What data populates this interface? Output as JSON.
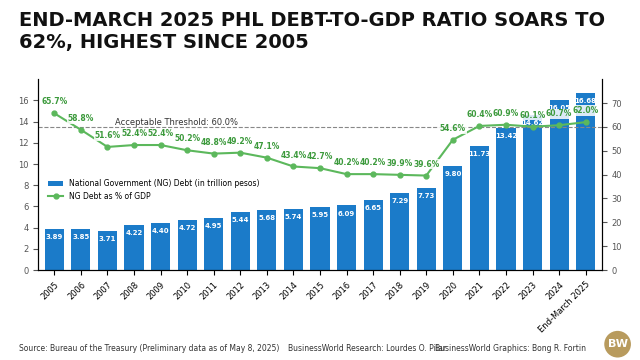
{
  "chart_data": {
    "type": "bar",
    "title": "END-MARCH 2025 PHL DEBT-TO-GDP RATIO SOARS TO 62%, HIGHEST SINCE 2005",
    "categories": [
      "2005",
      "2006",
      "2007",
      "2008",
      "2009",
      "2010",
      "2011",
      "2012",
      "2013",
      "2014",
      "2015",
      "2016",
      "2017",
      "2018",
      "2019",
      "2020",
      "2021",
      "2022",
      "2023",
      "2024",
      "End-March 2025"
    ],
    "series": [
      {
        "name": "National Government (NG) Debt (in trillion pesos)",
        "type": "bar",
        "color": "#1b7bc9",
        "values": [
          3.89,
          3.85,
          3.71,
          4.22,
          4.4,
          4.72,
          4.95,
          5.44,
          5.68,
          5.74,
          5.95,
          6.09,
          6.65,
          7.29,
          7.73,
          9.8,
          11.73,
          13.42,
          14.62,
          16.05,
          16.68
        ],
        "value_labels": [
          "3.89",
          "3.85",
          "3.71",
          "4.22",
          "4.40",
          "4.72",
          "4.95",
          "5.44",
          "5.68",
          "5.74",
          "5.95",
          "6.09",
          "6.65",
          "7.29",
          "7.73",
          "9.80",
          "11.73",
          "13.42",
          "14.62",
          "16.05",
          "16.68"
        ]
      },
      {
        "name": "NG Debt as % of GDP",
        "type": "line",
        "axis": "y2",
        "color": "#5cb85c",
        "marker": "o",
        "line_style": "solid",
        "values": [
          65.7,
          58.8,
          51.6,
          52.4,
          52.4,
          50.2,
          48.8,
          49.2,
          47.1,
          43.4,
          42.7,
          40.2,
          40.2,
          39.9,
          39.6,
          54.6,
          60.4,
          60.9,
          60.1,
          60.7,
          62.0
        ],
        "value_labels": [
          "65.7%",
          "58.8%",
          "51.6%",
          "52.4%",
          "52.4%",
          "50.2%",
          "48.8%",
          "49.2%",
          "47.1%",
          "43.4%",
          "42.7%",
          "40.2%",
          "40.2%",
          "39.9%",
          "39.6%",
          "54.6%",
          "60.4%",
          "60.9%",
          "60.1%",
          "60.7%",
          "62.0%"
        ]
      }
    ],
    "ylim": [
      0,
      18
    ],
    "yticks": [
      0,
      2,
      4,
      6,
      8,
      10,
      12,
      14,
      16
    ],
    "y2lim": [
      0,
      80
    ],
    "y2ticks": [
      0,
      10,
      20,
      30,
      40,
      50,
      60,
      70
    ],
    "annotations": [
      {
        "text": "Acceptable Threshold: 60.0%",
        "y": 60,
        "axis": "y2"
      }
    ],
    "source": "Source: Bureau of the Treasury (Preliminary data as of May 8, 2025)",
    "credits": [
      "BusinessWorld Research: Lourdes O. Pilar",
      "BusinessWorld Graphics: Bong R. Fortin"
    ],
    "logo": "BW",
    "data_labels": true,
    "legend": "center left",
    "grid": false
  }
}
